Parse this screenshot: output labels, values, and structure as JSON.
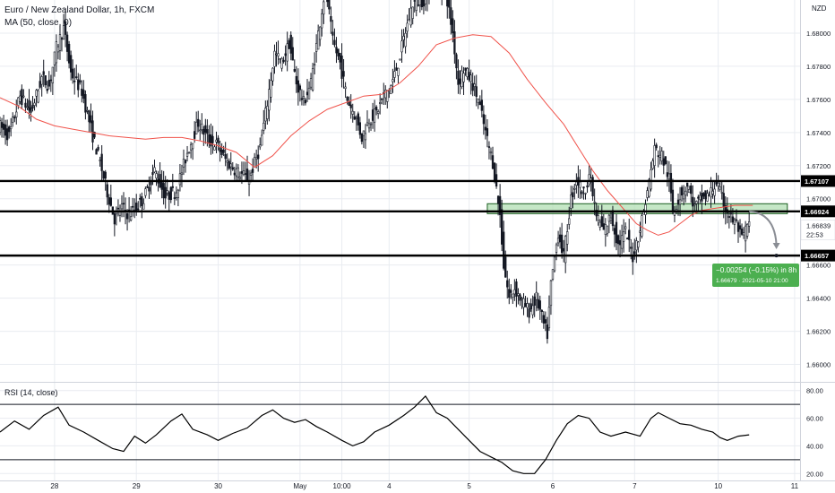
{
  "header": {
    "title": "Euro / New Zealand Dollar, 1h, FXCM",
    "ma_label": "MA (50, close, 0)",
    "currency": "NZD",
    "rsi_label": "RSI (14, close)"
  },
  "colors": {
    "up": "#ffffff",
    "down": "#131722",
    "ma": "#f0534b",
    "grid": "#e9ecf1",
    "level": "#000000",
    "zone_fill": "#b2dfb3",
    "zone_border": "#1b5e20",
    "badge": "#4caf50",
    "arrow": "#8a8d94"
  },
  "chart_data": [
    {
      "type": "candlestick",
      "title": "Euro / New Zealand Dollar, 1h, FXCM",
      "ylim": [
        1.659,
        1.682
      ],
      "y_ticks": [
        "1.68000",
        "1.67800",
        "1.67600",
        "1.67400",
        "1.67200",
        "1.67000",
        "1.66600",
        "1.66400",
        "1.66200",
        "1.66000"
      ],
      "x_ticks": [
        "28",
        "29",
        "30",
        "May",
        "10:00",
        "4",
        "5",
        "6",
        "7",
        "10",
        "11"
      ],
      "x_index": [
        30,
        75,
        120,
        165,
        188,
        214,
        258,
        304,
        349,
        395,
        437
      ],
      "levels": [
        {
          "label": "1.67107",
          "value": 1.67107
        },
        {
          "label": "1.66924",
          "value": 1.66924
        },
        {
          "label": "1.66657",
          "value": 1.66657
        }
      ],
      "zone": {
        "from_index": 268,
        "to_index": 433,
        "low": 1.6691,
        "high": 1.6697
      },
      "last_price": {
        "label": "1.66839",
        "timer": "22:53",
        "value": 1.66839
      },
      "measure": {
        "text": "−0.00254 (−0.15%) in 8h",
        "subtext": "1.66679 · 2021-05-10  21:00"
      },
      "price_path": [
        [
          0,
          1.6745
        ],
        [
          6,
          1.6738
        ],
        [
          12,
          1.6762
        ],
        [
          18,
          1.6752
        ],
        [
          24,
          1.6773
        ],
        [
          28,
          1.6768
        ],
        [
          32,
          1.6791
        ],
        [
          36,
          1.6803
        ],
        [
          40,
          1.6776
        ],
        [
          46,
          1.6765
        ],
        [
          52,
          1.6738
        ],
        [
          56,
          1.6722
        ],
        [
          60,
          1.6704
        ],
        [
          64,
          1.6688
        ],
        [
          68,
          1.6695
        ],
        [
          72,
          1.669
        ],
        [
          80,
          1.67
        ],
        [
          86,
          1.6717
        ],
        [
          92,
          1.6701
        ],
        [
          98,
          1.6705
        ],
        [
          104,
          1.6728
        ],
        [
          110,
          1.6746
        ],
        [
          116,
          1.6735
        ],
        [
          120,
          1.6733
        ],
        [
          126,
          1.6722
        ],
        [
          132,
          1.6716
        ],
        [
          138,
          1.6712
        ],
        [
          144,
          1.6731
        ],
        [
          148,
          1.6758
        ],
        [
          152,
          1.6788
        ],
        [
          156,
          1.6782
        ],
        [
          160,
          1.6794
        ],
        [
          164,
          1.677
        ],
        [
          168,
          1.6758
        ],
        [
          172,
          1.677
        ],
        [
          176,
          1.68
        ],
        [
          180,
          1.6828
        ],
        [
          184,
          1.6795
        ],
        [
          188,
          1.6782
        ],
        [
          192,
          1.676
        ],
        [
          196,
          1.6751
        ],
        [
          200,
          1.6737
        ],
        [
          204,
          1.6748
        ],
        [
          208,
          1.6752
        ],
        [
          212,
          1.6762
        ],
        [
          216,
          1.6768
        ],
        [
          220,
          1.6782
        ],
        [
          224,
          1.6801
        ],
        [
          228,
          1.6818
        ],
        [
          234,
          1.682
        ],
        [
          240,
          1.683
        ],
        [
          246,
          1.6826
        ],
        [
          250,
          1.68
        ],
        [
          253,
          1.677
        ],
        [
          256,
          1.6778
        ],
        [
          260,
          1.6772
        ],
        [
          264,
          1.676
        ],
        [
          268,
          1.674
        ],
        [
          272,
          1.6722
        ],
        [
          276,
          1.669
        ],
        [
          278,
          1.666
        ],
        [
          281,
          1.664
        ],
        [
          284,
          1.6646
        ],
        [
          288,
          1.6638
        ],
        [
          292,
          1.6632
        ],
        [
          296,
          1.664
        ],
        [
          300,
          1.6624
        ],
        [
          302,
          1.6618
        ],
        [
          304,
          1.6648
        ],
        [
          308,
          1.668
        ],
        [
          311,
          1.6665
        ],
        [
          315,
          1.67
        ],
        [
          318,
          1.6712
        ],
        [
          322,
          1.6703
        ],
        [
          325,
          1.6715
        ],
        [
          329,
          1.669
        ],
        [
          333,
          1.668
        ],
        [
          337,
          1.669
        ],
        [
          341,
          1.6672
        ],
        [
          345,
          1.668
        ],
        [
          349,
          1.6665
        ],
        [
          353,
          1.6682
        ],
        [
          357,
          1.6704
        ],
        [
          361,
          1.673
        ],
        [
          365,
          1.6726
        ],
        [
          369,
          1.6712
        ],
        [
          371,
          1.6692
        ],
        [
          375,
          1.6702
        ],
        [
          379,
          1.6708
        ],
        [
          383,
          1.6695
        ],
        [
          387,
          1.67
        ],
        [
          391,
          1.6702
        ],
        [
          395,
          1.671
        ],
        [
          399,
          1.6697
        ],
        [
          403,
          1.6688
        ],
        [
          406,
          1.6685
        ],
        [
          409,
          1.6675
        ],
        [
          412,
          1.6684
        ]
      ],
      "ma_path": [
        [
          0,
          1.6761
        ],
        [
          10,
          1.6756
        ],
        [
          20,
          1.6748
        ],
        [
          30,
          1.6744
        ],
        [
          40,
          1.6742
        ],
        [
          50,
          1.674
        ],
        [
          60,
          1.6738
        ],
        [
          70,
          1.6737
        ],
        [
          80,
          1.6736
        ],
        [
          90,
          1.6737
        ],
        [
          100,
          1.6737
        ],
        [
          110,
          1.6735
        ],
        [
          120,
          1.6732
        ],
        [
          130,
          1.6728
        ],
        [
          140,
          1.6719
        ],
        [
          150,
          1.6726
        ],
        [
          160,
          1.6738
        ],
        [
          170,
          1.6747
        ],
        [
          180,
          1.6754
        ],
        [
          190,
          1.6758
        ],
        [
          200,
          1.6762
        ],
        [
          210,
          1.6763
        ],
        [
          220,
          1.677
        ],
        [
          230,
          1.678
        ],
        [
          240,
          1.6793
        ],
        [
          250,
          1.6797
        ],
        [
          260,
          1.6799
        ],
        [
          270,
          1.6798
        ],
        [
          280,
          1.6788
        ],
        [
          290,
          1.6772
        ],
        [
          300,
          1.6758
        ],
        [
          310,
          1.6745
        ],
        [
          318,
          1.6731
        ],
        [
          326,
          1.6717
        ],
        [
          334,
          1.6705
        ],
        [
          342,
          1.6695
        ],
        [
          350,
          1.6685
        ],
        [
          356,
          1.6681
        ],
        [
          362,
          1.6678
        ],
        [
          368,
          1.668
        ],
        [
          374,
          1.6685
        ],
        [
          380,
          1.669
        ],
        [
          386,
          1.6693
        ],
        [
          392,
          1.6694
        ],
        [
          398,
          1.6695
        ],
        [
          404,
          1.6696
        ],
        [
          410,
          1.6696
        ],
        [
          414,
          1.6696
        ]
      ]
    },
    {
      "type": "line",
      "title": "RSI (14, close)",
      "ylim": [
        15,
        85
      ],
      "y_ticks": [
        "80.00",
        "60.00",
        "40.00",
        "20.00"
      ],
      "bands": [
        70,
        30
      ],
      "rsi_path": [
        [
          0,
          50
        ],
        [
          8,
          58
        ],
        [
          16,
          52
        ],
        [
          24,
          62
        ],
        [
          32,
          68
        ],
        [
          38,
          55
        ],
        [
          46,
          50
        ],
        [
          54,
          44
        ],
        [
          62,
          38
        ],
        [
          68,
          36
        ],
        [
          74,
          47
        ],
        [
          80,
          42
        ],
        [
          86,
          48
        ],
        [
          94,
          58
        ],
        [
          100,
          63
        ],
        [
          106,
          52
        ],
        [
          114,
          48
        ],
        [
          120,
          44
        ],
        [
          128,
          49
        ],
        [
          136,
          53
        ],
        [
          144,
          62
        ],
        [
          150,
          66
        ],
        [
          156,
          60
        ],
        [
          162,
          57
        ],
        [
          168,
          59
        ],
        [
          174,
          54
        ],
        [
          180,
          50
        ],
        [
          188,
          44
        ],
        [
          194,
          40
        ],
        [
          200,
          43
        ],
        [
          206,
          50
        ],
        [
          214,
          55
        ],
        [
          222,
          62
        ],
        [
          228,
          68
        ],
        [
          234,
          76
        ],
        [
          240,
          64
        ],
        [
          246,
          60
        ],
        [
          252,
          52
        ],
        [
          258,
          44
        ],
        [
          264,
          36
        ],
        [
          270,
          32
        ],
        [
          276,
          28
        ],
        [
          282,
          22
        ],
        [
          288,
          20
        ],
        [
          294,
          20
        ],
        [
          300,
          30
        ],
        [
          306,
          44
        ],
        [
          312,
          56
        ],
        [
          318,
          62
        ],
        [
          324,
          60
        ],
        [
          330,
          50
        ],
        [
          336,
          47
        ],
        [
          344,
          50
        ],
        [
          352,
          47
        ],
        [
          358,
          60
        ],
        [
          362,
          64
        ],
        [
          368,
          60
        ],
        [
          374,
          56
        ],
        [
          380,
          55
        ],
        [
          386,
          52
        ],
        [
          392,
          50
        ],
        [
          396,
          46
        ],
        [
          400,
          44
        ],
        [
          406,
          47
        ],
        [
          412,
          48
        ]
      ]
    }
  ],
  "x_tick_labels": [
    "28",
    "29",
    "30",
    "May",
    "10:00",
    "4",
    "5",
    "6",
    "7",
    "10",
    "11"
  ]
}
